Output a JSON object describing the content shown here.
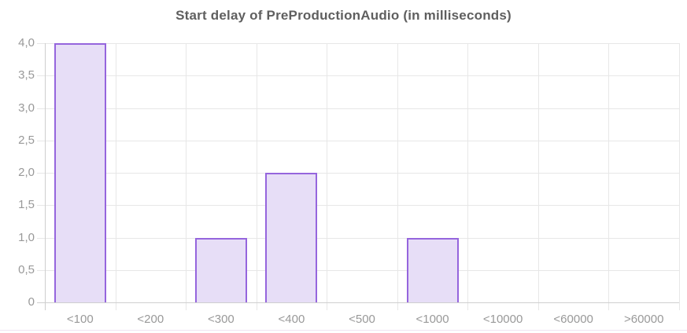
{
  "chart_data": {
    "type": "bar",
    "title": "Start delay of PreProductionAudio (in milliseconds)",
    "categories": [
      "<100",
      "<200",
      "<300",
      "<400",
      "<500",
      "<1000",
      "<10000",
      "<60000",
      ">60000"
    ],
    "values": [
      4,
      0,
      1,
      2,
      0,
      1,
      0,
      0,
      0
    ],
    "y_ticks": [
      "4,0",
      "3,5",
      "3,0",
      "2,5",
      "2,0",
      "1,5",
      "1,0",
      "0,5",
      "0"
    ],
    "y_tick_values": [
      4,
      3.5,
      3,
      2.5,
      2,
      1.5,
      1,
      0.5,
      0
    ],
    "ylim": [
      0,
      4
    ],
    "xlabel": "",
    "ylabel": "",
    "grid": true,
    "legend_position": "none",
    "colors": {
      "bar_fill": "#e7def7",
      "bar_border": "#9565dd",
      "grid": "#e7e7e7",
      "axis": "#cfcfcf",
      "title": "#5f5f5f",
      "tick_label": "#999999",
      "bottom_border": "#f0e4f2"
    }
  }
}
